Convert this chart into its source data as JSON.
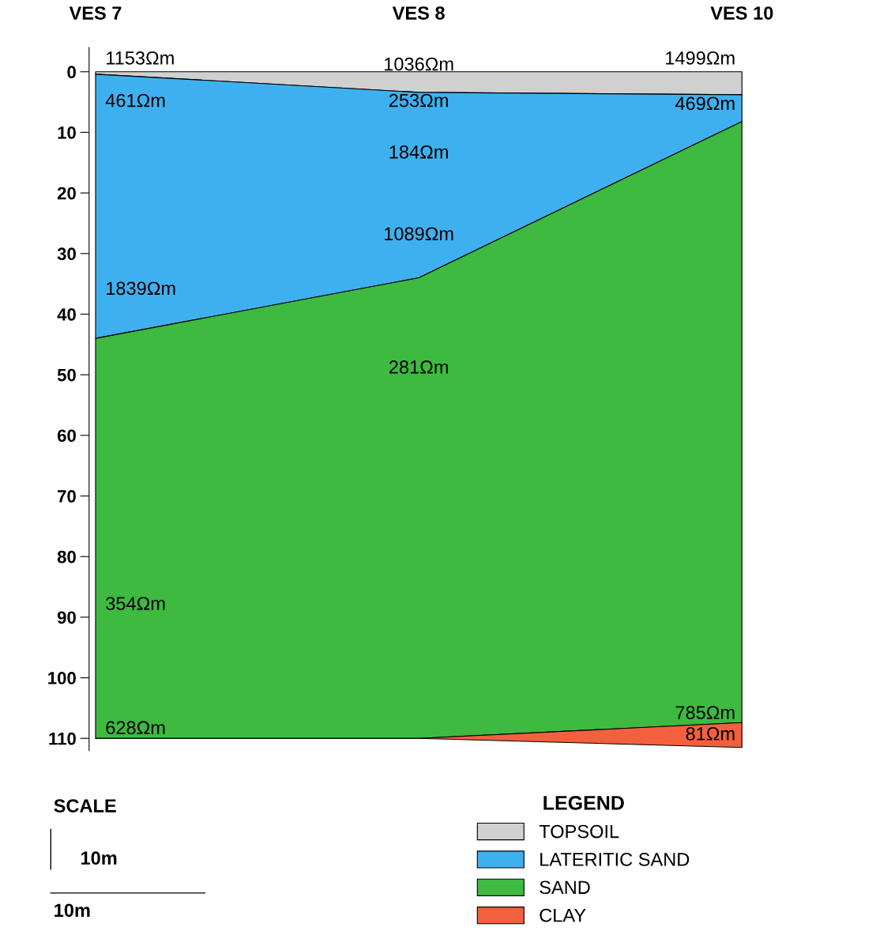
{
  "chart_data": {
    "type": "area",
    "stacked": true,
    "categories": [
      "VES 7",
      "VES 8",
      "VES 10"
    ],
    "series": [
      {
        "name": "TOPSOIL",
        "color": "#d0d0d0",
        "values": [
          0.4,
          3.4,
          3.8
        ]
      },
      {
        "name": "LATERITIC SAND",
        "color": "#3fb0ef",
        "values": [
          43.6,
          30.6,
          4.4
        ]
      },
      {
        "name": "SAND",
        "color": "#3dba3f",
        "values": [
          66,
          76,
          99.2
        ]
      },
      {
        "name": "CLAY",
        "color": "#f2603e",
        "values": [
          0,
          0,
          4.1
        ]
      }
    ],
    "ylim": [
      112,
      -4
    ],
    "yticks": [
      0,
      10,
      20,
      30,
      40,
      50,
      60,
      70,
      80,
      90,
      100,
      110
    ],
    "legend": "bottom",
    "legend_title": "LEGEND",
    "grid": false,
    "annotations": [
      "1153Ωm",
      "461Ωm",
      "1839Ωm",
      "354Ωm",
      "628Ωm",
      "1036Ωm",
      "253Ωm",
      "184Ωm",
      "1089Ωm",
      "281Ωm",
      "1499Ωm",
      "469Ωm",
      "785Ωm",
      "81Ωm",
      "SCALE",
      "10m",
      "10m"
    ]
  }
}
